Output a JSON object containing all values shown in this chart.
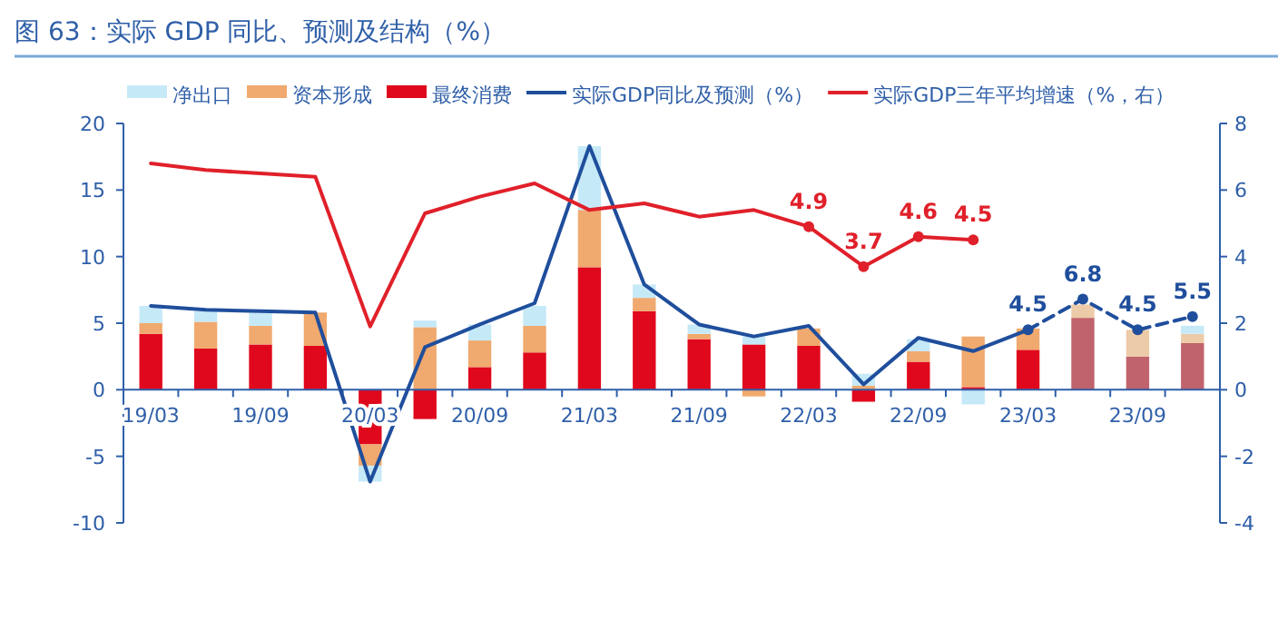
{
  "chart_data": {
    "type": "bar",
    "title": "图 63：实际 GDP 同比、预测及结构（%）",
    "categories": [
      "19/03",
      null,
      "19/09",
      null,
      "20/03",
      null,
      "20/09",
      null,
      "21/03",
      null,
      "21/09",
      null,
      "22/03",
      null,
      "22/09",
      null,
      "23/03",
      null,
      "23/09",
      null
    ],
    "stacked": true,
    "ylim": [
      -10,
      20
    ],
    "yticks": [
      -10,
      -5,
      0,
      5,
      10,
      15,
      20
    ],
    "y2lim": [
      -4,
      8
    ],
    "y2ticks": [
      -4,
      -2,
      0,
      2,
      4,
      6,
      8
    ],
    "legend": "top",
    "series": [
      {
        "name": "最终消费",
        "color": "#e0081c",
        "values": [
          4.2,
          3.1,
          3.4,
          3.3,
          -4.1,
          -2.2,
          1.7,
          2.8,
          9.2,
          5.9,
          3.8,
          3.4,
          3.3,
          -0.9,
          2.1,
          0.2,
          3.0,
          5.4,
          2.5,
          3.5
        ],
        "colors": [
          "#e0081c",
          "#e0081c",
          "#e0081c",
          "#e0081c",
          "#e0081c",
          "#e0081c",
          "#e0081c",
          "#e0081c",
          "#e0081c",
          "#e0081c",
          "#e0081c",
          "#e0081c",
          "#e0081c",
          "#e0081c",
          "#e0081c",
          "#e0081c",
          "#e0081c",
          "#c0636c",
          "#c0636c",
          "#c0636c"
        ]
      },
      {
        "name": "资本形成",
        "color": "#f0a96e",
        "values": [
          0.8,
          2.0,
          1.4,
          2.5,
          -1.6,
          4.7,
          2.0,
          2.0,
          4.3,
          1.0,
          0.4,
          -0.5,
          1.3,
          0.3,
          0.8,
          3.8,
          1.6,
          1.0,
          2.0,
          0.7
        ],
        "colors": [
          "#f0a96e",
          "#f0a96e",
          "#f0a96e",
          "#f0a96e",
          "#f0a96e",
          "#f0a96e",
          "#f0a96e",
          "#f0a96e",
          "#f0a96e",
          "#f0a96e",
          "#f0a96e",
          "#f0a96e",
          "#f0a96e",
          "#f0a96e",
          "#f0a96e",
          "#f0a96e",
          "#f0a96e",
          "#eccba8",
          "#eccba8",
          "#eccba8"
        ]
      },
      {
        "name": "净出口",
        "color": "#c6e9f8",
        "values": [
          1.3,
          0.8,
          1.0,
          null,
          -1.2,
          0.5,
          1.2,
          1.5,
          4.8,
          1.0,
          0.7,
          0.6,
          null,
          0.9,
          0.9,
          -1.1,
          null,
          null,
          null,
          0.6
        ]
      },
      {
        "name": "实际GDP同比及预测（%）",
        "type": "line",
        "color": "#1f4e9c",
        "values": [
          6.3,
          6.0,
          5.9,
          5.8,
          -6.9,
          3.2,
          4.9,
          6.5,
          18.3,
          7.9,
          4.9,
          4.0,
          4.8,
          0.4,
          3.9,
          2.9,
          4.5,
          null,
          null,
          null
        ]
      },
      {
        "type": "line",
        "color": "#1f4e9c",
        "line_style": "dashed",
        "marker": "circle",
        "data_labels": true,
        "values": [
          null,
          null,
          null,
          null,
          null,
          null,
          null,
          null,
          null,
          null,
          null,
          null,
          null,
          null,
          null,
          null,
          4.5,
          6.8,
          4.5,
          5.5
        ]
      },
      {
        "name": "实际GDP三年平均增速（%，右）",
        "type": "line",
        "axis": "y2",
        "color": "#e0202a",
        "values": [
          6.8,
          6.6,
          6.5,
          6.4,
          1.9,
          5.3,
          5.8,
          6.2,
          5.4,
          5.6,
          5.2,
          5.4,
          4.9,
          null,
          null,
          null,
          null,
          null,
          null,
          null
        ]
      },
      {
        "type": "line",
        "axis": "y2",
        "color": "#e0202a",
        "marker": "circle",
        "data_labels": true,
        "values": [
          null,
          null,
          null,
          null,
          null,
          null,
          null,
          null,
          null,
          null,
          null,
          null,
          4.9,
          3.7,
          4.6,
          4.5,
          null,
          null,
          null,
          null
        ]
      }
    ]
  }
}
